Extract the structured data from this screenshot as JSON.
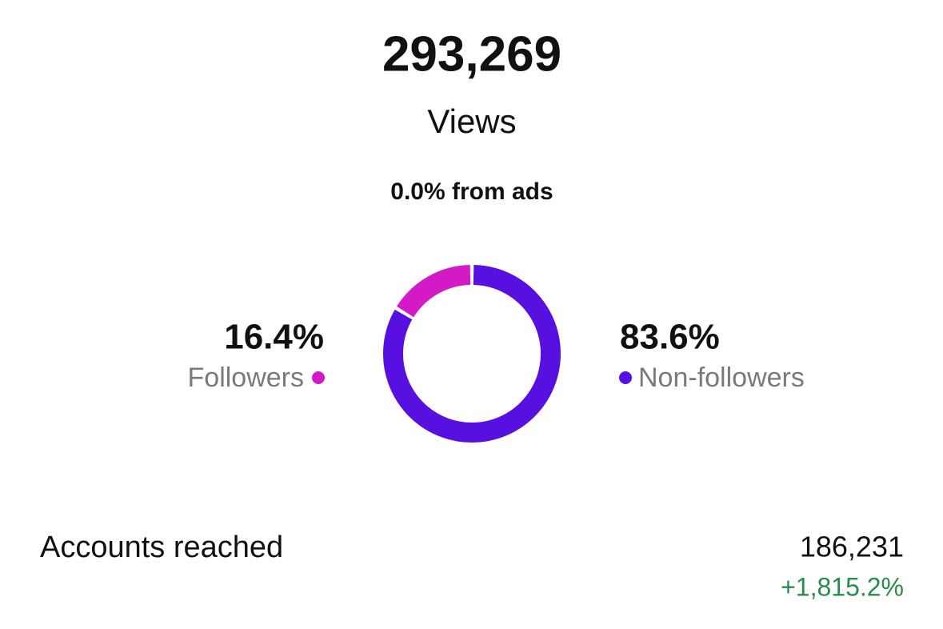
{
  "header": {
    "total": "293,269",
    "label": "Views",
    "ads_note": "0.0% from ads"
  },
  "chart_data": {
    "type": "donut",
    "categories": [
      "Followers",
      "Non-followers"
    ],
    "values": [
      16.4,
      83.6
    ],
    "value_labels": [
      "16.4%",
      "83.6%"
    ],
    "colors": [
      "#d21bc6",
      "#5810e0"
    ]
  },
  "metrics": {
    "label": "Accounts reached",
    "value": "186,231",
    "change": "+1,815.2%"
  }
}
